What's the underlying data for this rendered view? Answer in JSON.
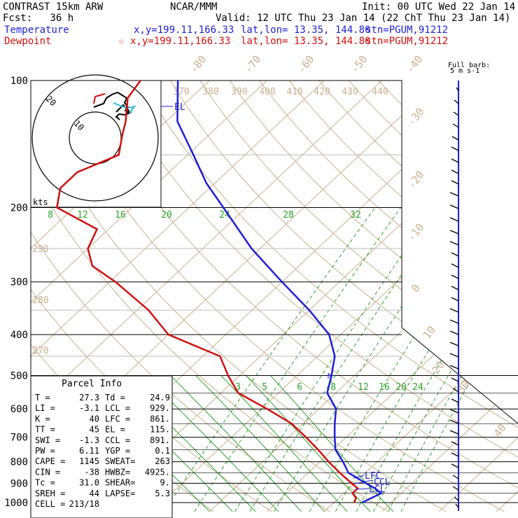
{
  "header": {
    "title": "CONTRAST 15km ARW",
    "fcst": "Fcst:   36 h",
    "model": "NCAR/MMM",
    "init": "Init: 00 UTC Wed 22 Jan 14",
    "valid": "Valid: 12 UTC Thu 23 Jan 14 (22 ChT Thu 23 Jan 14)",
    "temp_label": "Temperature",
    "temp_xy": "x,y=199.11,166.33",
    "temp_latlon": "lat,lon= 13.35, 144.80",
    "temp_stn": "stn=PGUM,91212",
    "dew_label": "Dewpoint",
    "dew_xy": "x,y=199.11,166.33",
    "dew_latlon": "lat,lon= 13.35, 144.80",
    "dew_stn": "stn=PGUM,91212",
    "colors": {
      "temp": "#1f1fd6",
      "dew": "#d01010"
    }
  },
  "chart_data": {
    "type": "line",
    "y_scale": "log-pressure",
    "pressure_ticks": [
      "100",
      "200",
      "300",
      "400",
      "500",
      "600",
      "700",
      "800",
      "900",
      "1000"
    ],
    "isotherm_labels": [
      "-80",
      "-70",
      "-60",
      "-50",
      "-40",
      "-30",
      "-20",
      "-10",
      "0",
      "10",
      "20",
      "30",
      "40"
    ],
    "theta_labels": [
      "370",
      "380",
      "390",
      "400",
      "410",
      "420",
      "430",
      "440",
      "290",
      "280",
      "270"
    ],
    "mixing_ratio_upper": [
      "8",
      "12",
      "16",
      "20",
      "24",
      "28",
      "32"
    ],
    "mixing_ratio_lower": [
      "2",
      "3",
      "5",
      "6",
      "8",
      "12",
      "16",
      "20",
      "24"
    ],
    "series": [
      {
        "name": "Temperature",
        "color": "#1f1fd6",
        "points": [
          [
            1000,
            24.9
          ],
          [
            950,
            26.5
          ],
          [
            925,
            24.5
          ],
          [
            900,
            22.0
          ],
          [
            850,
            17.0
          ],
          [
            800,
            14.0
          ],
          [
            750,
            10.5
          ],
          [
            700,
            8.0
          ],
          [
            650,
            5.5
          ],
          [
            600,
            3.0
          ],
          [
            550,
            -1.5
          ],
          [
            500,
            -4.0
          ],
          [
            450,
            -7.0
          ],
          [
            400,
            -12.0
          ],
          [
            350,
            -20.0
          ],
          [
            300,
            -30.0
          ],
          [
            250,
            -41.5
          ],
          [
            200,
            -54.0
          ],
          [
            175,
            -61.5
          ],
          [
            150,
            -69.0
          ],
          [
            125,
            -78.0
          ],
          [
            100,
            -85.5
          ]
        ]
      },
      {
        "name": "Dewpoint",
        "color": "#d01010",
        "points": [
          [
            1000,
            23.5
          ],
          [
            975,
            23.0
          ],
          [
            950,
            21.5
          ],
          [
            925,
            21.5
          ],
          [
            900,
            19.5
          ],
          [
            850,
            15.5
          ],
          [
            800,
            11.5
          ],
          [
            750,
            7.5
          ],
          [
            700,
            3.0
          ],
          [
            650,
            -2.0
          ],
          [
            600,
            -9.0
          ],
          [
            550,
            -17.0
          ],
          [
            500,
            -22.0
          ],
          [
            450,
            -27.0
          ],
          [
            400,
            -40.0
          ],
          [
            350,
            -48.0
          ],
          [
            300,
            -59.0
          ],
          [
            275,
            -66.0
          ],
          [
            250,
            -70.0
          ],
          [
            225,
            -72.0
          ],
          [
            200,
            -83.0
          ],
          [
            180,
            -86.0
          ],
          [
            165,
            -86.0
          ],
          [
            150,
            -82.0
          ],
          [
            135,
            -85.0
          ],
          [
            125,
            -87.0
          ],
          [
            110,
            -91.0
          ],
          [
            100,
            -92.0
          ]
        ]
      }
    ],
    "level_labels": [
      "EL",
      "LFC",
      "CCL",
      "LCL",
      "M"
    ],
    "hodograph": {
      "ring_labels": [
        "10",
        "20"
      ],
      "unit": "kts"
    },
    "wind_barbs": {
      "title": "Full barb:",
      "unit": "5 m s-1"
    },
    "parcel_info": {
      "title": "Parcel Info",
      "rows": [
        [
          "T  =",
          "27.3",
          "Td =",
          "24.9"
        ],
        [
          "LI =",
          "-3.1",
          "LCL =",
          "929."
        ],
        [
          "K  =",
          "40",
          "LFC =",
          "861."
        ],
        [
          "TT =",
          "45",
          "EL =",
          "115."
        ],
        [
          "SWI =",
          "-1.3",
          "CCL =",
          "891."
        ],
        [
          "PW =",
          "6.11",
          "YGP =",
          "0.1"
        ],
        [
          "CAPE =",
          "1145",
          "SWEAT=",
          "263"
        ],
        [
          "CIN =",
          "-38",
          "HWBZ=",
          "4925."
        ],
        [
          "Tc =",
          "31.0",
          "SHEAR=",
          "9."
        ],
        [
          "SREH =",
          "44",
          "LAPSE=",
          "5.3"
        ],
        [
          "CELL =",
          "213/18",
          "",
          ""
        ]
      ]
    }
  }
}
